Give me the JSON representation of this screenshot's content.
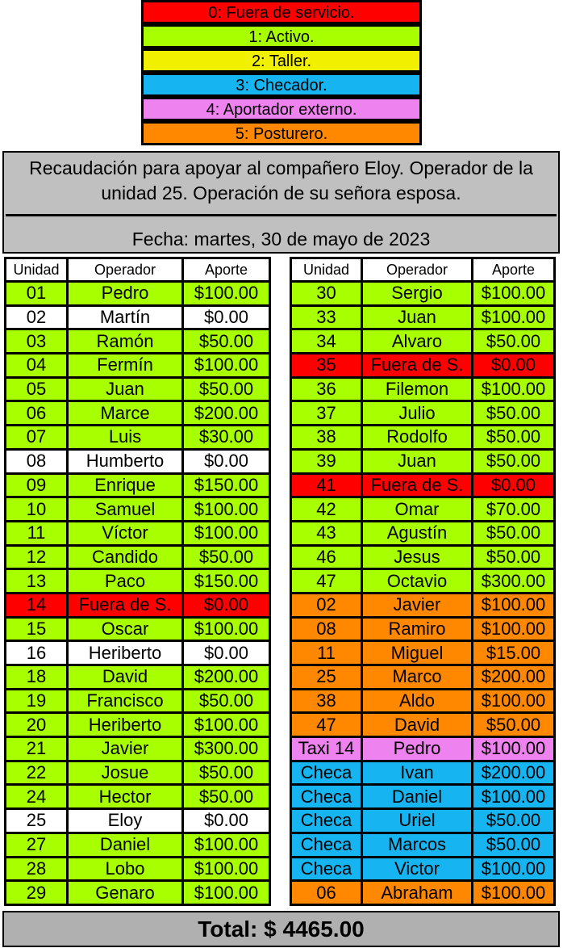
{
  "legend": [
    {
      "label": "0: Fuera de servicio.",
      "color": "#ff0000"
    },
    {
      "label": "1: Activo.",
      "color": "#a8ff00"
    },
    {
      "label": "2: Taller.",
      "color": "#f0f000"
    },
    {
      "label": "3: Checador.",
      "color": "#16b4f0"
    },
    {
      "label": "4: Aportador externo.",
      "color": "#ee82ee"
    },
    {
      "label": "5: Posturero.",
      "color": "#ff8800"
    }
  ],
  "header": {
    "title": "Recaudación para apoyar al compañero Eloy. Operador de la unidad 25. Operación de su señora esposa.",
    "date": "Fecha: martes, 30 de mayo de 2023"
  },
  "columns": {
    "unit": "Unidad",
    "operator": "Operador",
    "contribution": "Aporte"
  },
  "left_table": [
    {
      "unit": "01",
      "operator": "Pedro",
      "amount": "$100.00",
      "status": 1
    },
    {
      "unit": "02",
      "operator": "Martín",
      "amount": "$0.00",
      "status": -1
    },
    {
      "unit": "03",
      "operator": "Ramón",
      "amount": "$50.00",
      "status": 1
    },
    {
      "unit": "04",
      "operator": "Fermín",
      "amount": "$100.00",
      "status": 1
    },
    {
      "unit": "05",
      "operator": "Juan",
      "amount": "$50.00",
      "status": 1
    },
    {
      "unit": "06",
      "operator": "Marce",
      "amount": "$200.00",
      "status": 1
    },
    {
      "unit": "07",
      "operator": "Luis",
      "amount": "$30.00",
      "status": 1
    },
    {
      "unit": "08",
      "operator": "Humberto",
      "amount": "$0.00",
      "status": -1
    },
    {
      "unit": "09",
      "operator": "Enrique",
      "amount": "$150.00",
      "status": 1
    },
    {
      "unit": "10",
      "operator": "Samuel",
      "amount": "$100.00",
      "status": 1
    },
    {
      "unit": "11",
      "operator": "Víctor",
      "amount": "$100.00",
      "status": 1
    },
    {
      "unit": "12",
      "operator": "Candido",
      "amount": "$50.00",
      "status": 1
    },
    {
      "unit": "13",
      "operator": "Paco",
      "amount": "$150.00",
      "status": 1
    },
    {
      "unit": "14",
      "operator": "Fuera de S.",
      "amount": "$0.00",
      "status": 0
    },
    {
      "unit": "15",
      "operator": "Oscar",
      "amount": "$100.00",
      "status": 1
    },
    {
      "unit": "16",
      "operator": "Heriberto",
      "amount": "$0.00",
      "status": -1
    },
    {
      "unit": "18",
      "operator": "David",
      "amount": "$200.00",
      "status": 1
    },
    {
      "unit": "19",
      "operator": "Francisco",
      "amount": "$50.00",
      "status": 1
    },
    {
      "unit": "20",
      "operator": "Heriberto",
      "amount": "$100.00",
      "status": 1
    },
    {
      "unit": "21",
      "operator": "Javier",
      "amount": "$300.00",
      "status": 1
    },
    {
      "unit": "22",
      "operator": "Josue",
      "amount": "$50.00",
      "status": 1
    },
    {
      "unit": "24",
      "operator": "Hector",
      "amount": "$50.00",
      "status": 1
    },
    {
      "unit": "25",
      "operator": "Eloy",
      "amount": "$0.00",
      "status": -1
    },
    {
      "unit": "27",
      "operator": "Daniel",
      "amount": "$100.00",
      "status": 1
    },
    {
      "unit": "28",
      "operator": "Lobo",
      "amount": "$100.00",
      "status": 1
    },
    {
      "unit": "29",
      "operator": "Genaro",
      "amount": "$100.00",
      "status": 1
    }
  ],
  "right_table": [
    {
      "unit": "30",
      "operator": "Sergio",
      "amount": "$100.00",
      "status": 1
    },
    {
      "unit": "33",
      "operator": "Juan",
      "amount": "$100.00",
      "status": 1
    },
    {
      "unit": "34",
      "operator": "Alvaro",
      "amount": "$50.00",
      "status": 1
    },
    {
      "unit": "35",
      "operator": "Fuera de S.",
      "amount": "$0.00",
      "status": 0
    },
    {
      "unit": "36",
      "operator": "Filemon",
      "amount": "$100.00",
      "status": 1
    },
    {
      "unit": "37",
      "operator": "Julio",
      "amount": "$50.00",
      "status": 1
    },
    {
      "unit": "38",
      "operator": "Rodolfo",
      "amount": "$50.00",
      "status": 1
    },
    {
      "unit": "39",
      "operator": "Juan",
      "amount": "$50.00",
      "status": 1
    },
    {
      "unit": "41",
      "operator": "Fuera de S.",
      "amount": "$0.00",
      "status": 0
    },
    {
      "unit": "42",
      "operator": "Omar",
      "amount": "$70.00",
      "status": 1
    },
    {
      "unit": "43",
      "operator": "Agustín",
      "amount": "$50.00",
      "status": 1
    },
    {
      "unit": "46",
      "operator": "Jesus",
      "amount": "$50.00",
      "status": 1
    },
    {
      "unit": "47",
      "operator": "Octavio",
      "amount": "$300.00",
      "status": 1
    },
    {
      "unit": "02",
      "operator": "Javier",
      "amount": "$100.00",
      "status": 5
    },
    {
      "unit": "08",
      "operator": "Ramiro",
      "amount": "$100.00",
      "status": 5
    },
    {
      "unit": "11",
      "operator": "Miguel",
      "amount": "$15.00",
      "status": 5
    },
    {
      "unit": "25",
      "operator": "Marco",
      "amount": "$200.00",
      "status": 5
    },
    {
      "unit": "38",
      "operator": "Aldo",
      "amount": "$100.00",
      "status": 5
    },
    {
      "unit": "47",
      "operator": "David",
      "amount": "$50.00",
      "status": 5
    },
    {
      "unit": "Taxi 14",
      "operator": "Pedro",
      "amount": "$100.00",
      "status": 4
    },
    {
      "unit": "Checa",
      "operator": "Ivan",
      "amount": "$200.00",
      "status": 3
    },
    {
      "unit": "Checa",
      "operator": "Daniel",
      "amount": "$100.00",
      "status": 3
    },
    {
      "unit": "Checa",
      "operator": "Uriel",
      "amount": "$50.00",
      "status": 3
    },
    {
      "unit": "Checa",
      "operator": "Marcos",
      "amount": "$50.00",
      "status": 3
    },
    {
      "unit": "Checa",
      "operator": "Victor",
      "amount": "$100.00",
      "status": 3
    },
    {
      "unit": "06",
      "operator": "Abraham",
      "amount": "$100.00",
      "status": 5
    }
  ],
  "total": "Total: $ 4465.00"
}
